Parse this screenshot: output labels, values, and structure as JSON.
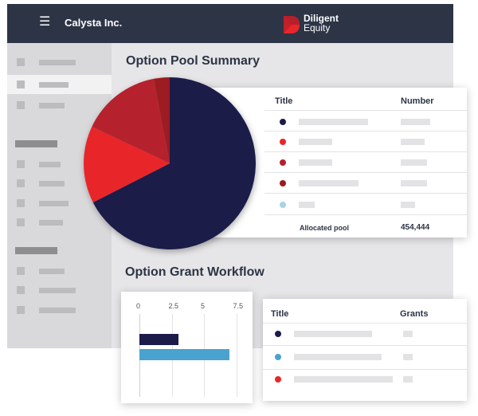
{
  "header": {
    "company": "Calysta Inc.",
    "logo_line1": "Diligent",
    "logo_line2": "Equity",
    "hamburger_icon": "☰"
  },
  "colors": {
    "navy": "#1b1c4a",
    "bright_red": "#e8262b",
    "red": "#b5202d",
    "dark_red": "#9c1b20",
    "light_blue": "#a7d3e6",
    "teal_blue": "#4aa3cf"
  },
  "option_pool": {
    "title": "Option Pool Summary",
    "col_title": "Title",
    "col_number": "Number",
    "total_label": "Allocated pool",
    "total_value": "454,444"
  },
  "option_grant": {
    "title": "Option Grant Workflow",
    "col_title": "Title",
    "col_grants": "Grants",
    "ticks": [
      "0",
      "2.5",
      "5",
      "7.5"
    ]
  },
  "chart_data": [
    {
      "type": "pie",
      "slices": [
        {
          "color": "#1b1c4a",
          "value": 67.5
        },
        {
          "color": "#e8262b",
          "value": 14.5
        },
        {
          "color": "#b5202d",
          "value": 15.0
        },
        {
          "color": "#9c1b20",
          "value": 3.0
        }
      ]
    },
    {
      "type": "bar",
      "orientation": "horizontal",
      "xlim": [
        0,
        8.5
      ],
      "ticks": [
        0,
        2.5,
        5,
        7.5
      ],
      "values": [
        3,
        7
      ]
    }
  ]
}
